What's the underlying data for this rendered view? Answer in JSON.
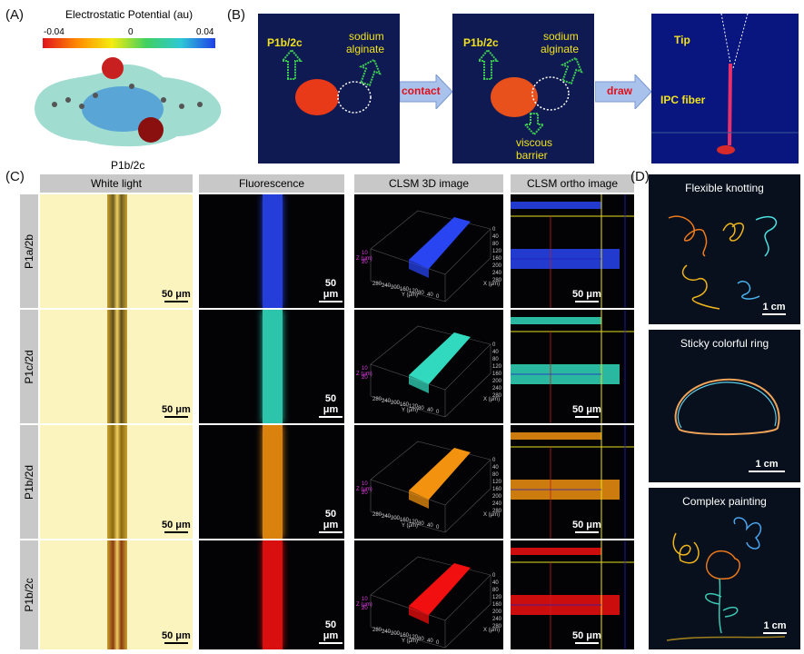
{
  "panels": {
    "a": "(A)",
    "b": "(B)",
    "c": "(C)",
    "d": "(D)"
  },
  "panel_a": {
    "colorbar_title": "Electrostatic Potential (au)",
    "min": "-0.04",
    "mid": "0",
    "max": "0.04",
    "molecule_label": "P1b/2c"
  },
  "panel_b": {
    "left_label": "P1b/2c",
    "right_label_line1": "sodium",
    "right_label_line2": "alginate",
    "step1": "contact",
    "barrier_line1": "viscous",
    "barrier_line2": "barrier",
    "step2": "draw",
    "tip": "Tip",
    "fiber": "IPC fiber"
  },
  "panel_c": {
    "columns": [
      "White light",
      "Fluorescence",
      "CLSM 3D image",
      "CLSM ortho image"
    ],
    "rows": [
      "P1a/2b",
      "P1c/2d",
      "P1b/2d",
      "P1b/2c"
    ],
    "row_colors": [
      "#2b49ff",
      "#34e6c8",
      "#ff9a10",
      "#ff1010"
    ],
    "scale_bar": "50 μm",
    "axis_z": "Z (μm)",
    "axis_y": "Y (μm)",
    "axis_x": "X (μm)",
    "z_ticks": [
      "10",
      "20"
    ],
    "y_ticks": [
      "280",
      "240",
      "200",
      "160",
      "120",
      "80",
      "40",
      "0"
    ],
    "x_ticks": [
      "0",
      "40",
      "80",
      "120",
      "160",
      "200",
      "240",
      "280"
    ]
  },
  "panel_d": {
    "titles": [
      "Flexible knotting",
      "Sticky colorful ring",
      "Complex painting"
    ],
    "scale": "1 cm"
  }
}
